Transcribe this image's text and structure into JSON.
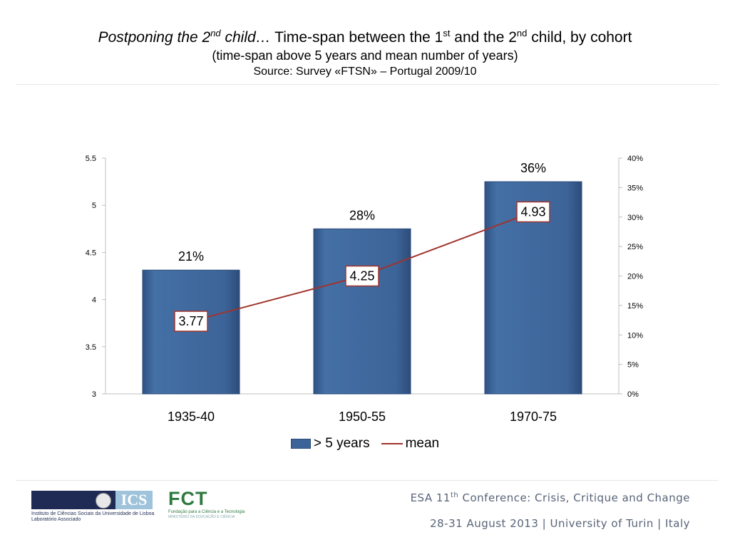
{
  "title": {
    "italic_pre": "Postponing the 2",
    "italic_sup": "nd",
    "italic_post": " child…",
    "main_pre": " Time-span between the 1",
    "main_sup1": "st",
    "main_mid": " and the 2",
    "main_sup2": "nd",
    "main_post": " child, by cohort",
    "subtitle": "(time-span above 5 years and mean number of years)",
    "source": "Source: Survey «FTSN» – Portugal 2009/10"
  },
  "chart_data": {
    "type": "bar",
    "categories": [
      "1935-40",
      "1950-55",
      "1970-75"
    ],
    "series": [
      {
        "name": "> 5 years",
        "type": "bar",
        "axis": "right",
        "values": [
          21,
          28,
          36
        ],
        "labels": [
          "21%",
          "28%",
          "36%"
        ],
        "color": "#3d6498"
      },
      {
        "name": "mean",
        "type": "line",
        "axis": "left",
        "values": [
          3.77,
          4.25,
          4.93
        ],
        "labels": [
          "3.77",
          "4.25",
          "4.93"
        ],
        "color": "#a0342c"
      }
    ],
    "y_left": {
      "ylim": [
        3,
        5.5
      ],
      "ticks": [
        "5.5",
        "5",
        "4.5",
        "4",
        "3.5",
        "3"
      ]
    },
    "y_right": {
      "ylim": [
        0,
        40
      ],
      "ticks": [
        "40%",
        "35%",
        "30%",
        "25%",
        "20%",
        "15%",
        "10%",
        "5%",
        "0%"
      ]
    },
    "legend": "bottom"
  },
  "footer": {
    "line1_pre": "ESA 11",
    "line1_sup": "th",
    "line1_post": " Conference: Crisis, Critique and Change",
    "line2": "28-31 August 2013 | University of Turin | Italy"
  },
  "logos": {
    "ics_letters": "ICS",
    "ics_text1": "Instituto de Ciências Sociais da Universidade de Lisboa",
    "ics_text2": "Laboratório Associado",
    "fct_word": "FCT",
    "fct_text": "Fundação para a Ciência e a Tecnologia",
    "fct_text2": "MINISTÉRIO DA EDUCAÇÃO E CIÊNCIA"
  }
}
